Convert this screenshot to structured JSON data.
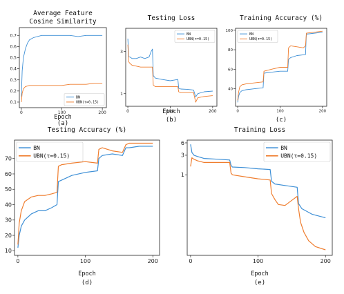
{
  "colors": {
    "bn": "#3d8fd6",
    "ubn": "#ef7d2e"
  },
  "chart_data": [
    {
      "id": "a",
      "type": "line",
      "title": "Average Feature\nCosine Similarity",
      "xlabel": "Epoch",
      "caption": "(a)",
      "xlim": [
        -5,
        210
      ],
      "ylim": [
        0.05,
        0.77
      ],
      "xticks": [
        0,
        100,
        200
      ],
      "yticks": [
        0.1,
        0.2,
        0.3,
        0.4,
        0.5,
        0.6,
        0.7
      ],
      "yscale": "linear",
      "legend": "bottom-right",
      "series": [
        {
          "name": "BN",
          "color": "#3d8fd6",
          "x": [
            0,
            2,
            5,
            10,
            15,
            20,
            30,
            40,
            50,
            60,
            80,
            100,
            120,
            140,
            160,
            180,
            200
          ],
          "y": [
            0.15,
            0.38,
            0.5,
            0.58,
            0.63,
            0.66,
            0.68,
            0.69,
            0.7,
            0.7,
            0.7,
            0.7,
            0.7,
            0.69,
            0.7,
            0.7,
            0.7
          ]
        },
        {
          "name": "UBN(τ=0.15)",
          "color": "#ef7d2e",
          "x": [
            0,
            2,
            5,
            10,
            20,
            40,
            60,
            80,
            100,
            120,
            140,
            160,
            180,
            200
          ],
          "y": [
            0.1,
            0.18,
            0.22,
            0.24,
            0.25,
            0.25,
            0.25,
            0.25,
            0.25,
            0.26,
            0.26,
            0.26,
            0.27,
            0.27
          ]
        }
      ]
    },
    {
      "id": "b",
      "type": "line",
      "title": "Testing Loss",
      "xlabel": "Epoch",
      "caption": "(b)",
      "xlim": [
        -5,
        210
      ],
      "ylim": [
        0.72,
        5.5
      ],
      "xticks": [
        0,
        100,
        200
      ],
      "yticks": [
        1,
        3
      ],
      "yscale": "log",
      "legend": "top-right",
      "series": [
        {
          "name": "BN",
          "color": "#3d8fd6",
          "x": [
            0,
            2,
            5,
            10,
            20,
            30,
            40,
            50,
            55,
            58,
            60,
            65,
            80,
            100,
            118,
            120,
            125,
            140,
            155,
            160,
            165,
            180,
            200
          ],
          "y": [
            4.2,
            2.6,
            2.6,
            2.5,
            2.5,
            2.6,
            2.5,
            2.6,
            3.0,
            3.2,
            1.6,
            1.5,
            1.45,
            1.4,
            1.45,
            1.15,
            1.13,
            1.12,
            1.1,
            0.92,
            1.0,
            1.05,
            1.07
          ]
        },
        {
          "name": "UBN(τ=0.15)",
          "color": "#ef7d2e",
          "x": [
            0,
            2,
            5,
            10,
            20,
            30,
            40,
            50,
            58,
            60,
            65,
            80,
            100,
            118,
            120,
            125,
            140,
            155,
            160,
            165,
            180,
            200
          ],
          "y": [
            3.6,
            2.3,
            2.2,
            2.1,
            2.05,
            2.0,
            2.0,
            2.0,
            2.0,
            1.25,
            1.2,
            1.2,
            1.2,
            1.2,
            1.05,
            1.03,
            1.03,
            1.03,
            0.8,
            0.9,
            0.93,
            0.95
          ]
        }
      ]
    },
    {
      "id": "c",
      "type": "line",
      "title": "Training Accuracy (%)",
      "xlabel": "",
      "caption": "(c)",
      "xlim": [
        -5,
        210
      ],
      "ylim": [
        22,
        102
      ],
      "xticks": [
        0,
        100,
        200
      ],
      "yticks": [
        40,
        60,
        80,
        100
      ],
      "yscale": "linear",
      "legend": "top-left",
      "series": [
        {
          "name": "BN",
          "color": "#3d8fd6",
          "x": [
            0,
            2,
            5,
            10,
            20,
            40,
            60,
            62,
            80,
            100,
            118,
            120,
            125,
            140,
            160,
            162,
            200
          ],
          "y": [
            26,
            32,
            36,
            38,
            39,
            40,
            41,
            56,
            57,
            58,
            58,
            70,
            72,
            74,
            75,
            96,
            98
          ]
        },
        {
          "name": "UBN(τ=0.15)",
          "color": "#ef7d2e",
          "x": [
            0,
            2,
            5,
            10,
            20,
            40,
            60,
            62,
            80,
            100,
            118,
            120,
            125,
            140,
            155,
            160,
            162,
            200
          ],
          "y": [
            28,
            36,
            42,
            44,
            45,
            46,
            47,
            58,
            60,
            62,
            62,
            82,
            84,
            83,
            82,
            84,
            97,
            99
          ]
        }
      ]
    },
    {
      "id": "d",
      "type": "line",
      "title": "Testing Accuracy (%)",
      "xlabel": "Epoch",
      "caption": "(d)",
      "xlim": [
        -5,
        210
      ],
      "ylim": [
        7,
        82
      ],
      "xticks": [
        0,
        100,
        200
      ],
      "yticks": [
        10,
        20,
        30,
        40,
        50,
        60,
        70
      ],
      "yscale": "linear",
      "legend": "top-left",
      "series": [
        {
          "name": "BN",
          "color": "#3d8fd6",
          "x": [
            0,
            2,
            5,
            10,
            20,
            30,
            40,
            50,
            58,
            60,
            65,
            80,
            100,
            118,
            120,
            125,
            140,
            155,
            160,
            165,
            180,
            200
          ],
          "y": [
            12,
            20,
            26,
            30,
            34,
            36,
            36,
            38,
            40,
            55,
            56,
            59,
            61,
            62,
            70,
            72,
            73,
            72,
            77,
            77,
            78,
            78
          ]
        },
        {
          "name": "UBN(τ=0.15)",
          "color": "#ef7d2e",
          "x": [
            0,
            2,
            5,
            10,
            20,
            30,
            40,
            50,
            58,
            60,
            65,
            80,
            100,
            118,
            120,
            125,
            140,
            155,
            160,
            165,
            180,
            200
          ],
          "y": [
            14,
            28,
            36,
            42,
            45,
            46,
            46,
            47,
            48,
            65,
            66,
            67,
            68,
            67,
            76,
            77,
            75,
            74,
            79,
            80,
            80,
            80
          ]
        }
      ]
    },
    {
      "id": "e",
      "type": "line",
      "title": "Training Loss",
      "xlabel": "Epoch",
      "caption": "(e)",
      "xlim": [
        -5,
        210
      ],
      "ylim": [
        0.011,
        7
      ],
      "xticks": [
        0,
        100,
        200
      ],
      "yticks": [
        1,
        3,
        6
      ],
      "yscale": "log",
      "legend": "top-right",
      "series": [
        {
          "name": "BN",
          "color": "#3d8fd6",
          "x": [
            0,
            2,
            5,
            10,
            20,
            40,
            58,
            60,
            62,
            80,
            100,
            118,
            120,
            125,
            140,
            158,
            160,
            165,
            180,
            200
          ],
          "y": [
            5.5,
            3.5,
            3.0,
            2.8,
            2.5,
            2.4,
            2.3,
            1.7,
            1.55,
            1.5,
            1.4,
            1.35,
            0.7,
            0.6,
            0.55,
            0.5,
            0.2,
            0.15,
            0.11,
            0.09
          ]
        },
        {
          "name": "UBN(τ=0.15)",
          "color": "#ef7d2e",
          "x": [
            0,
            2,
            5,
            10,
            20,
            40,
            58,
            60,
            62,
            80,
            100,
            118,
            120,
            125,
            130,
            140,
            150,
            158,
            160,
            163,
            168,
            175,
            185,
            200
          ],
          "y": [
            1.6,
            2.6,
            2.4,
            2.2,
            2.0,
            2.0,
            2.0,
            1.1,
            1.0,
            0.9,
            0.8,
            0.75,
            0.35,
            0.25,
            0.19,
            0.18,
            0.24,
            0.3,
            0.15,
            0.07,
            0.04,
            0.025,
            0.018,
            0.015
          ]
        }
      ]
    }
  ]
}
